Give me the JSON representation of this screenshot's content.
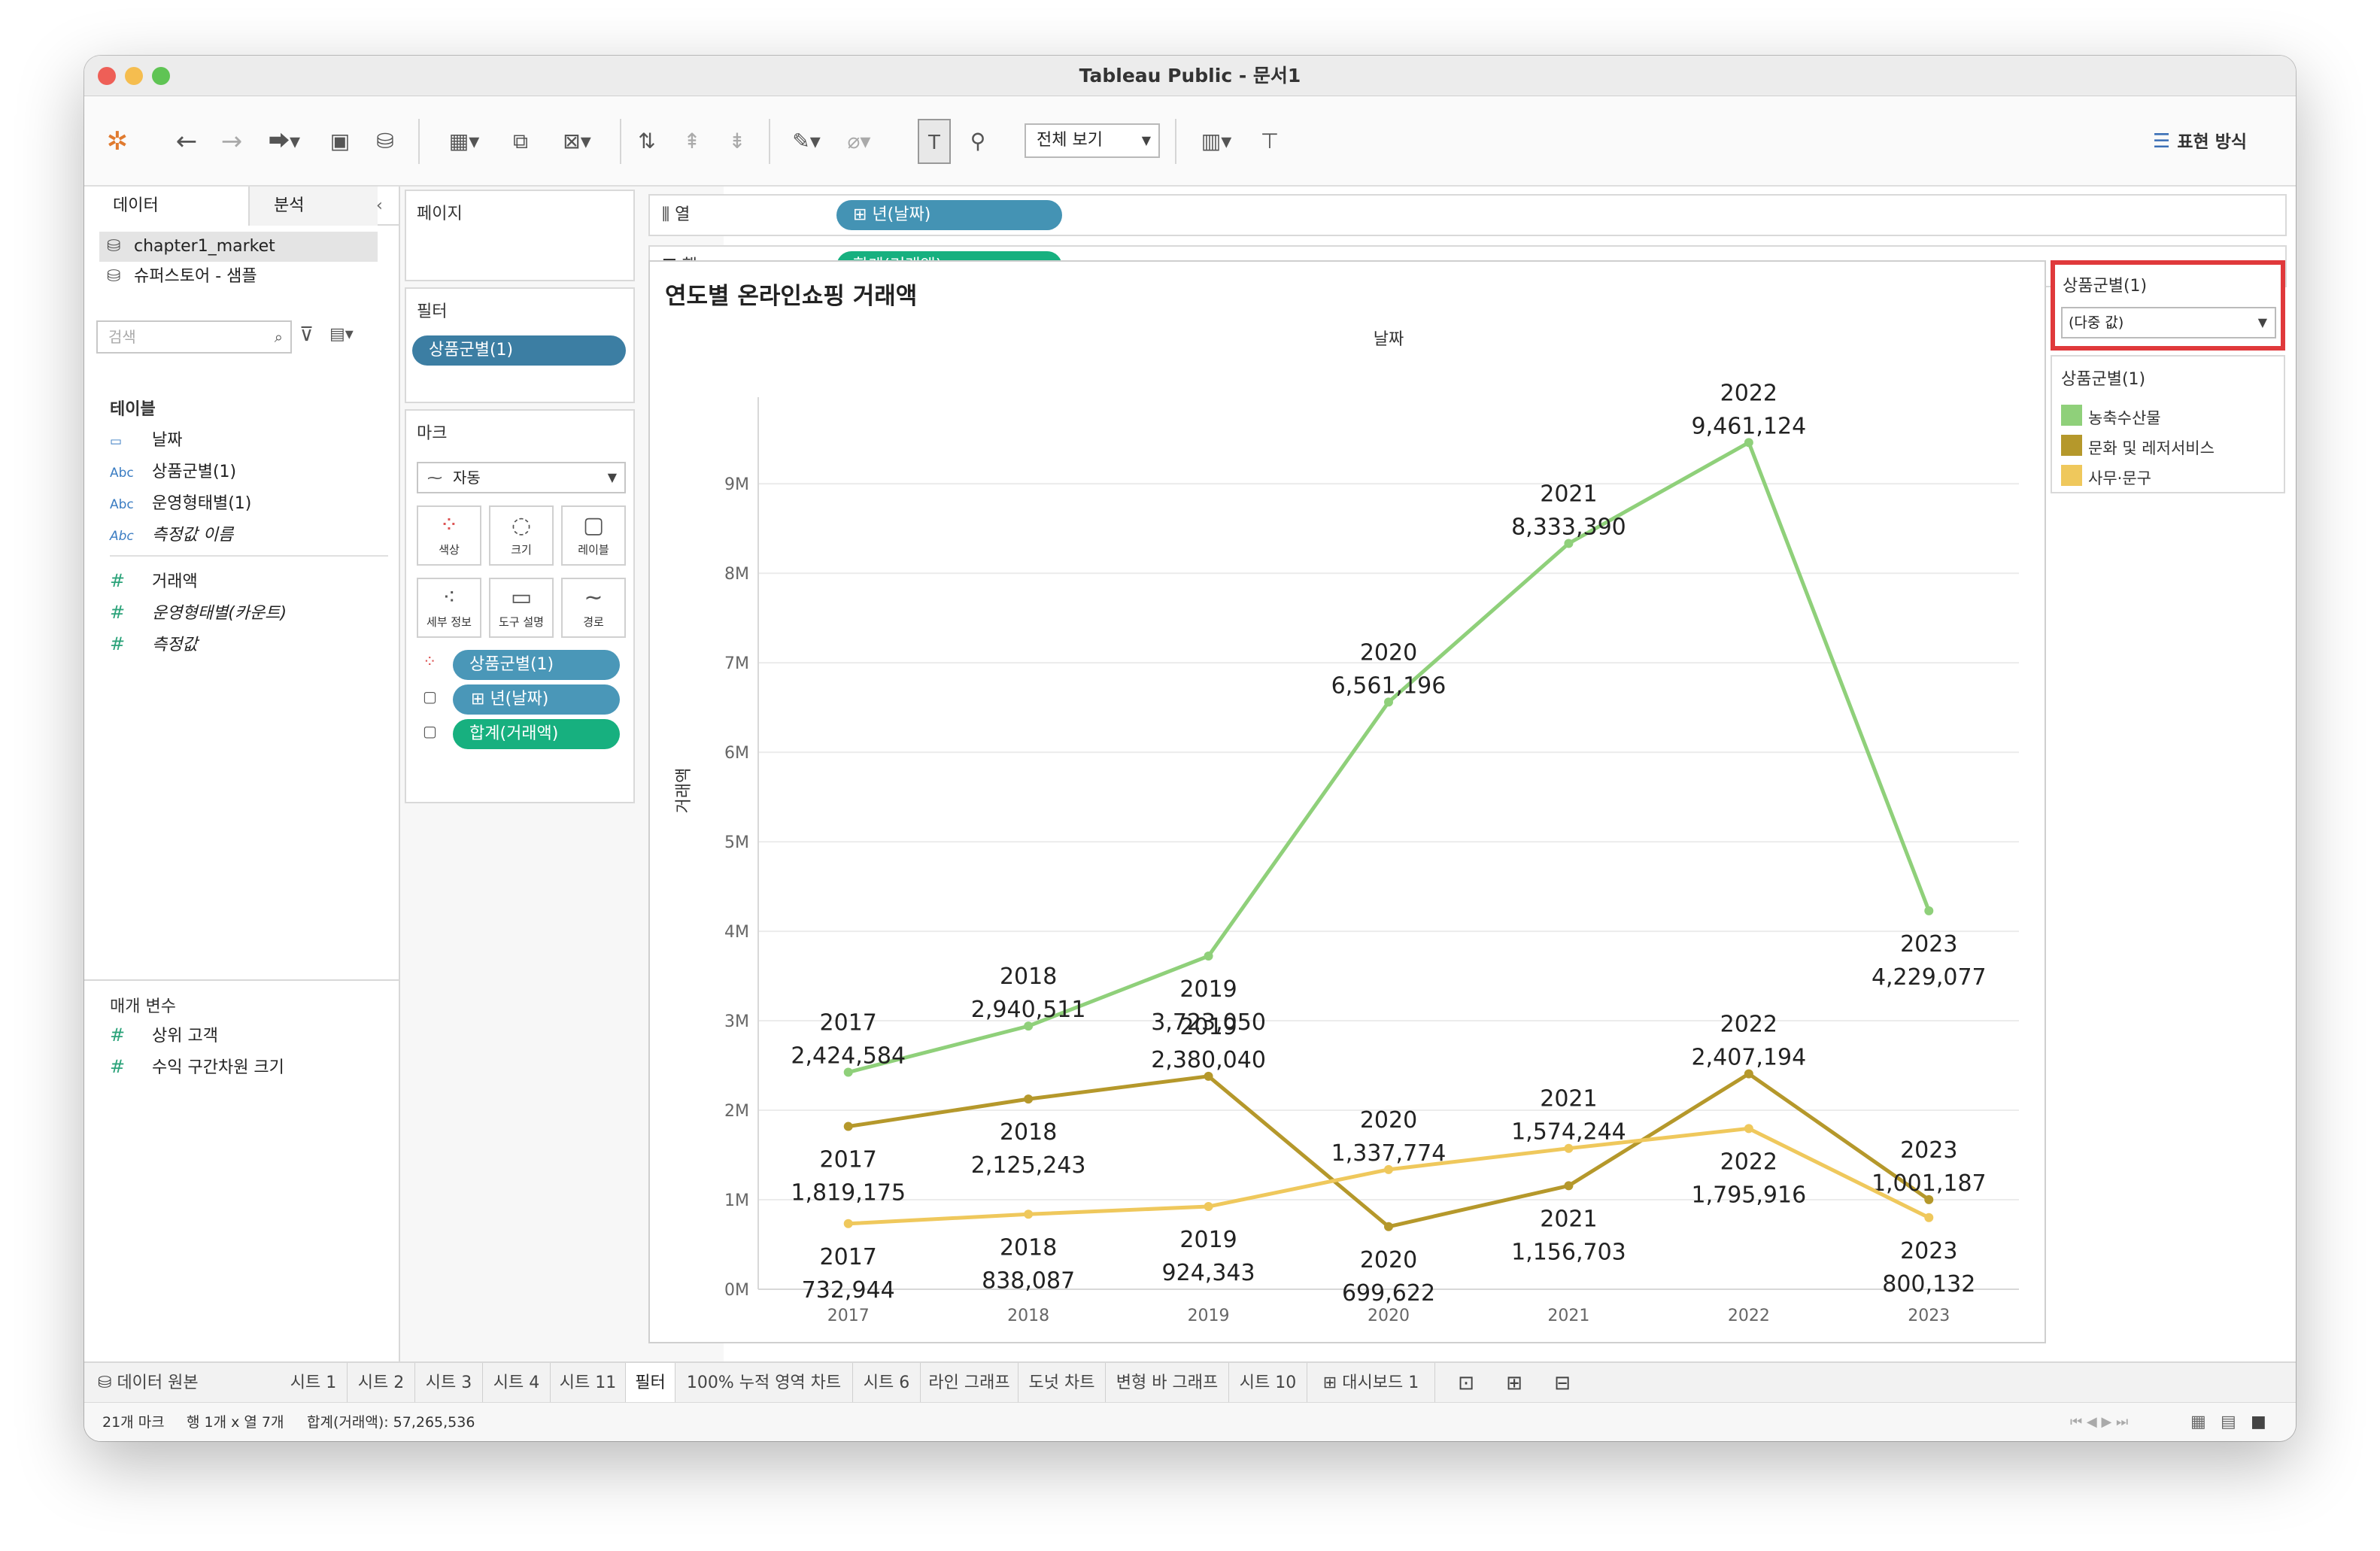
{
  "window": {
    "title": "Tableau Public - 문서1"
  },
  "toolbar": {
    "view_select": "전체 보기",
    "show_me": "표현 방식"
  },
  "left_panel": {
    "tab_data": "데이터",
    "tab_analysis": "분석",
    "datasources": [
      "chapter1_market",
      "슈퍼스토어 - 샘플"
    ],
    "search_placeholder": "검색",
    "tables_title": "테이블",
    "fields": [
      {
        "type": "date",
        "label": "날짜"
      },
      {
        "type": "abc",
        "label": "상품군별(1)"
      },
      {
        "type": "abc",
        "label": "운영형태별(1)"
      },
      {
        "type": "abc",
        "label": "측정값 이름"
      },
      {
        "type": "num",
        "label": "거래액"
      },
      {
        "type": "num",
        "label": "운영형태별(카운트)"
      },
      {
        "type": "num",
        "label": "측정값"
      }
    ],
    "params_title": "매개 변수",
    "params": [
      "상위 고객",
      "수익 구간차원 크기"
    ]
  },
  "shelves": {
    "pages": "페이지",
    "filters": "필터",
    "filter_pill": "상품군별(1)",
    "marks": "마크",
    "mark_type": "자동",
    "mark_buttons": [
      "색상",
      "크기",
      "레이블",
      "세부 정보",
      "도구 설명",
      "경로"
    ],
    "mark_pills": [
      "상품군별(1)",
      "년(날짜)",
      "합계(거래액)"
    ],
    "columns_label": "열",
    "columns_pill": "년(날짜)",
    "rows_label": "행",
    "rows_pill": "합계(거래액)"
  },
  "filter_card": {
    "title": "상품군별(1)",
    "value": "(다중 값)"
  },
  "legend": {
    "title": "상품군별(1)",
    "items": [
      {
        "label": "농축수산물",
        "color": "#8fd07a"
      },
      {
        "label": "문화 및 레저서비스",
        "color": "#b5982b"
      },
      {
        "label": "사무·문구",
        "color": "#efc85c"
      }
    ]
  },
  "chart_data": {
    "type": "line",
    "title": "연도별 온라인쇼핑 거래액",
    "xlabel": "날짜",
    "ylabel": "거래액",
    "categories": [
      "2017",
      "2018",
      "2019",
      "2020",
      "2021",
      "2022",
      "2023"
    ],
    "ylim": [
      0,
      9800000
    ],
    "yticks": [
      "0M",
      "1M",
      "2M",
      "3M",
      "4M",
      "5M",
      "6M",
      "7M",
      "8M",
      "9M"
    ],
    "grid": true,
    "series": [
      {
        "name": "농축수산물",
        "color": "#8fd07a",
        "values": [
          2424584,
          2940511,
          3723050,
          6561196,
          8333390,
          9461124,
          4229077
        ],
        "labels": [
          "2,424,584",
          "2,940,511",
          "3,723,050",
          "6,561,196",
          "8,333,390",
          "9,461,124",
          "4,229,077"
        ]
      },
      {
        "name": "문화 및 레저서비스",
        "color": "#b5982b",
        "values": [
          1819175,
          2125243,
          2380040,
          699622,
          1156703,
          2407194,
          1001187
        ],
        "labels": [
          "1,819,175",
          "2,125,243",
          "2,380,040",
          "699,622",
          "1,156,703",
          "2,407,194",
          "1,001,187"
        ]
      },
      {
        "name": "사무·문구",
        "color": "#efc85c",
        "values": [
          732944,
          838087,
          924343,
          1337774,
          1574244,
          1795916,
          800132
        ],
        "labels": [
          "732,944",
          "838,087",
          "924,343",
          "1,337,774",
          "1,574,244",
          "1,795,916",
          "800,132"
        ]
      }
    ]
  },
  "sheet_tabs": [
    "데이터 원본",
    "시트 1",
    "시트 2",
    "시트 3",
    "시트 4",
    "시트 11",
    "필터",
    "100% 누적 영역 차트",
    "시트 6",
    "라인 그래프",
    "도넛 차트",
    "변형 바 그래프",
    "시트 10",
    "대시보드 1"
  ],
  "status": {
    "marks": "21개 마크",
    "rows_cols": "행 1개 x 열 7개",
    "sum": "합계(거래액): 57,265,536"
  }
}
